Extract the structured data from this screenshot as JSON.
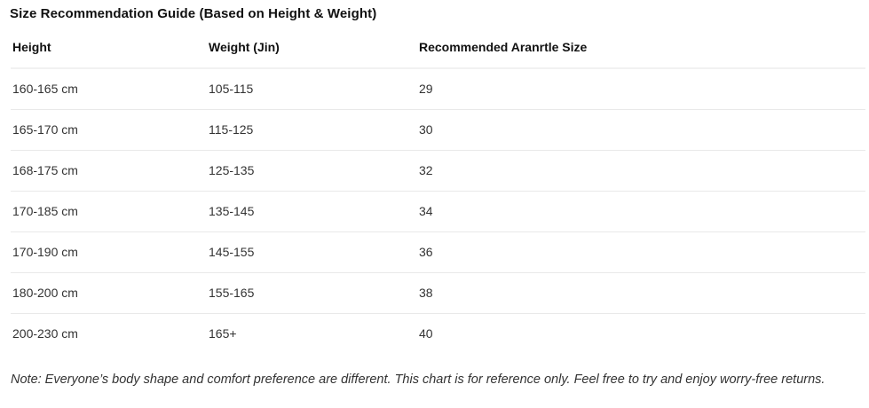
{
  "page": {
    "title": "Size Recommendation Guide (Based on Height & Weight)",
    "note": "Note: Everyone’s body shape and comfort preference are different. This chart is for reference only. Feel free to try and enjoy worry-free returns."
  },
  "table": {
    "columns": [
      "Height",
      "Weight (Jin)",
      "Recommended Aranrtle Size"
    ],
    "rows": [
      {
        "height": "160-165 cm",
        "weight": "105-115",
        "size": "29"
      },
      {
        "height": "165-170 cm",
        "weight": "115-125",
        "size": "30"
      },
      {
        "height": "168-175 cm",
        "weight": "125-135",
        "size": "32"
      },
      {
        "height": "170-185 cm",
        "weight": "135-145",
        "size": "34"
      },
      {
        "height": "170-190 cm",
        "weight": "145-155",
        "size": "36"
      },
      {
        "height": "180-200 cm",
        "weight": "155-165",
        "size": "38"
      },
      {
        "height": "200-230 cm",
        "weight": "165+",
        "size": "40"
      }
    ]
  },
  "chart_data": {
    "type": "table",
    "title": "Size Recommendation Guide (Based on Height & Weight)",
    "columns": [
      "Height",
      "Weight (Jin)",
      "Recommended Aranrtle Size"
    ],
    "rows": [
      [
        "160-165 cm",
        "105-115",
        "29"
      ],
      [
        "165-170 cm",
        "115-125",
        "30"
      ],
      [
        "168-175 cm",
        "125-135",
        "32"
      ],
      [
        "170-185 cm",
        "135-145",
        "34"
      ],
      [
        "170-190 cm",
        "145-155",
        "36"
      ],
      [
        "180-200 cm",
        "155-165",
        "38"
      ],
      [
        "200-230 cm",
        "165+",
        "40"
      ]
    ]
  },
  "colors": {
    "background": "#ffffff",
    "heading_text": "#111111",
    "body_text": "#333333",
    "header_divider": "#f1f1f1",
    "row_divider": "#e9e9e9"
  }
}
